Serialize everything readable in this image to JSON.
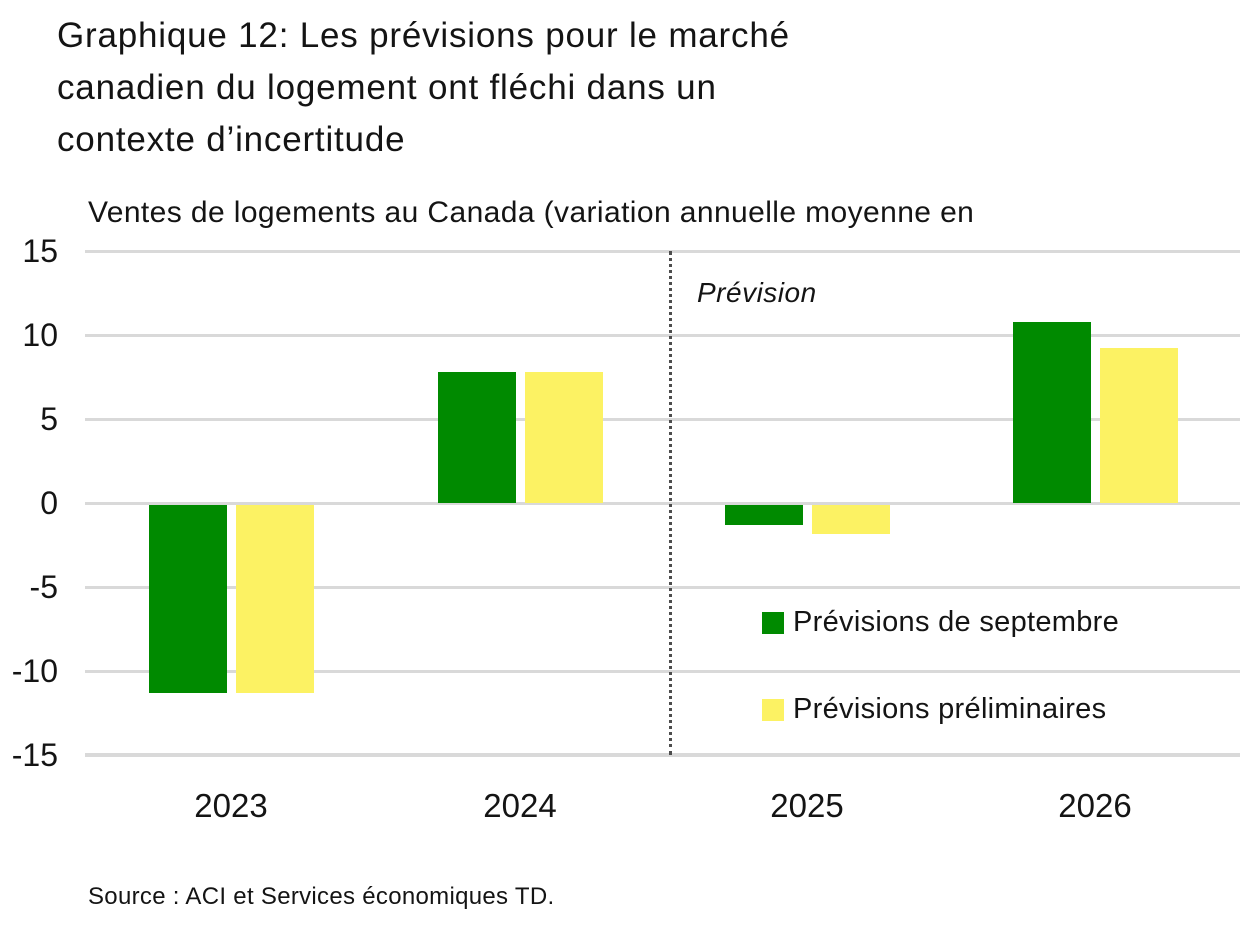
{
  "title_lines": [
    "Graphique 12: Les prévisions pour le marché",
    "canadien du logement ont fléchi dans un",
    "contexte d’incertitude"
  ],
  "chart_data": {
    "type": "bar",
    "title": "Graphique 12: Les prévisions pour le marché canadien du logement ont fléchi dans un contexte d’incertitude",
    "subtitle": "Ventes de logements au Canada (variation annuelle moyenne en",
    "categories": [
      "2023",
      "2024",
      "2025",
      "2026"
    ],
    "series": [
      {
        "name": "Prévisions de septembre",
        "color": "#008A00",
        "values": [
          -11.2,
          7.8,
          -1.2,
          10.8
        ]
      },
      {
        "name": "Prévisions préliminaires",
        "color": "#FCF263",
        "values": [
          -11.2,
          7.8,
          -1.7,
          9.2
        ]
      }
    ],
    "ylim": [
      -15,
      15
    ],
    "yticks": [
      15,
      10,
      5,
      0,
      -5,
      -10,
      -15
    ],
    "grid": "horizontal",
    "gridline_color": "#D9D9D9",
    "annotation": "Prévision",
    "forecast_divider_between": [
      "2024",
      "2025"
    ],
    "legend_position": "inside-bottom-right",
    "source": "Source : ACI et Services économiques TD."
  }
}
